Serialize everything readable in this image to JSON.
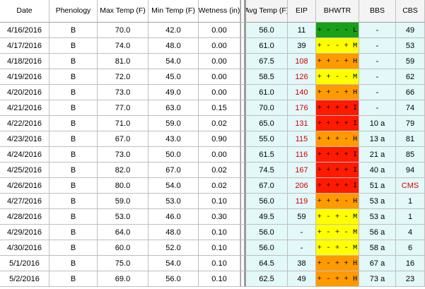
{
  "headers": {
    "date": "Date",
    "phenology": "Phenology",
    "max_temp": "Max Temp (F)",
    "min_temp": "Min Temp (F)",
    "wetness": "Wetness (in)",
    "avg_temp": "Avg Temp (F)",
    "eip": "EIP",
    "bhwtr": "BHWTR",
    "bbs": "BBS",
    "cbs": "CBS"
  },
  "colors": {
    "green": "#18a018",
    "yellow": "#ffff00",
    "orange": "#ff9a00",
    "red": "#ff1a00",
    "eip_high": "#d40000",
    "right_panel_bg": "#e3f8f8"
  },
  "rows": [
    {
      "date": "4/16/2016",
      "phenology": "B",
      "max": "70.0",
      "min": "42.0",
      "wet": "0.00",
      "avg": "56.0",
      "eip": "11",
      "eip_red": false,
      "bhwtr": "+ - - - L",
      "bhwtr_color": "green",
      "bbs": "-",
      "cbs": "49",
      "cbs_red": false
    },
    {
      "date": "4/17/2016",
      "phenology": "B",
      "max": "74.0",
      "min": "48.0",
      "wet": "0.00",
      "avg": "61.0",
      "eip": "39",
      "eip_red": false,
      "bhwtr": "+ - - + M",
      "bhwtr_color": "yellow",
      "bbs": "-",
      "cbs": "53",
      "cbs_red": false
    },
    {
      "date": "4/18/2016",
      "phenology": "B",
      "max": "81.0",
      "min": "54.0",
      "wet": "0.00",
      "avg": "67.5",
      "eip": "108",
      "eip_red": true,
      "bhwtr": "+ + - + H",
      "bhwtr_color": "orange",
      "bbs": "-",
      "cbs": "59",
      "cbs_red": false
    },
    {
      "date": "4/19/2016",
      "phenology": "B",
      "max": "72.0",
      "min": "45.0",
      "wet": "0.00",
      "avg": "58.5",
      "eip": "126",
      "eip_red": true,
      "bhwtr": "+ + - - M",
      "bhwtr_color": "yellow",
      "bbs": "-",
      "cbs": "62",
      "cbs_red": false
    },
    {
      "date": "4/20/2016",
      "phenology": "B",
      "max": "73.0",
      "min": "49.0",
      "wet": "0.00",
      "avg": "61.0",
      "eip": "140",
      "eip_red": true,
      "bhwtr": "+ + - + H",
      "bhwtr_color": "orange",
      "bbs": "-",
      "cbs": "66",
      "cbs_red": false
    },
    {
      "date": "4/21/2016",
      "phenology": "B",
      "max": "77.0",
      "min": "63.0",
      "wet": "0.15",
      "avg": "70.0",
      "eip": "176",
      "eip_red": true,
      "bhwtr": "+ + + + I",
      "bhwtr_color": "red",
      "bbs": "-",
      "cbs": "74",
      "cbs_red": false
    },
    {
      "date": "4/22/2016",
      "phenology": "B",
      "max": "71.0",
      "min": "59.0",
      "wet": "0.02",
      "avg": "65.0",
      "eip": "131",
      "eip_red": true,
      "bhwtr": "+ + + + I",
      "bhwtr_color": "red",
      "bbs": "10 a",
      "cbs": "79",
      "cbs_red": false
    },
    {
      "date": "4/23/2016",
      "phenology": "B",
      "max": "67.0",
      "min": "43.0",
      "wet": "0.90",
      "avg": "55.0",
      "eip": "115",
      "eip_red": true,
      "bhwtr": "+ + + - H",
      "bhwtr_color": "orange",
      "bbs": "13 a",
      "cbs": "81",
      "cbs_red": false
    },
    {
      "date": "4/24/2016",
      "phenology": "B",
      "max": "73.0",
      "min": "50.0",
      "wet": "0.00",
      "avg": "61.5",
      "eip": "116",
      "eip_red": true,
      "bhwtr": "+ + + + I",
      "bhwtr_color": "red",
      "bbs": "21 a",
      "cbs": "85",
      "cbs_red": false
    },
    {
      "date": "4/25/2016",
      "phenology": "B",
      "max": "82.0",
      "min": "67.0",
      "wet": "0.02",
      "avg": "74.5",
      "eip": "167",
      "eip_red": true,
      "bhwtr": "+ + + + I",
      "bhwtr_color": "red",
      "bbs": "40 a",
      "cbs": "94",
      "cbs_red": false
    },
    {
      "date": "4/26/2016",
      "phenology": "B",
      "max": "80.0",
      "min": "54.0",
      "wet": "0.02",
      "avg": "67.0",
      "eip": "206",
      "eip_red": true,
      "bhwtr": "+ + + + I",
      "bhwtr_color": "red",
      "bbs": "51 a",
      "cbs": "CMS",
      "cbs_red": true
    },
    {
      "date": "4/27/2016",
      "phenology": "B",
      "max": "59.0",
      "min": "53.0",
      "wet": "0.10",
      "avg": "56.0",
      "eip": "119",
      "eip_red": true,
      "bhwtr": "+ + + - H",
      "bhwtr_color": "orange",
      "bbs": "53 a",
      "cbs": "1",
      "cbs_red": false
    },
    {
      "date": "4/28/2016",
      "phenology": "B",
      "max": "53.0",
      "min": "46.0",
      "wet": "0.30",
      "avg": "49.5",
      "eip": "59",
      "eip_red": false,
      "bhwtr": "+ - + - M",
      "bhwtr_color": "yellow",
      "bbs": "53 a",
      "cbs": "1",
      "cbs_red": false
    },
    {
      "date": "4/29/2016",
      "phenology": "B",
      "max": "64.0",
      "min": "48.0",
      "wet": "0.10",
      "avg": "56.0",
      "eip": "-",
      "eip_red": false,
      "bhwtr": "+ - + - M",
      "bhwtr_color": "yellow",
      "bbs": "56 a",
      "cbs": "4",
      "cbs_red": false
    },
    {
      "date": "4/30/2016",
      "phenology": "B",
      "max": "60.0",
      "min": "52.0",
      "wet": "0.10",
      "avg": "56.0",
      "eip": "-",
      "eip_red": false,
      "bhwtr": "+ - + - M",
      "bhwtr_color": "yellow",
      "bbs": "58 a",
      "cbs": "6",
      "cbs_red": false
    },
    {
      "date": "5/1/2016",
      "phenology": "B",
      "max": "75.0",
      "min": "54.0",
      "wet": "0.10",
      "avg": "64.5",
      "eip": "38",
      "eip_red": false,
      "bhwtr": "+ - + + H",
      "bhwtr_color": "orange",
      "bbs": "67 a",
      "cbs": "16",
      "cbs_red": false
    },
    {
      "date": "5/2/2016",
      "phenology": "B",
      "max": "69.0",
      "min": "56.0",
      "wet": "0.10",
      "avg": "62.5",
      "eip": "49",
      "eip_red": false,
      "bhwtr": "+ - + + H",
      "bhwtr_color": "orange",
      "bbs": "73 a",
      "cbs": "23",
      "cbs_red": false
    }
  ]
}
